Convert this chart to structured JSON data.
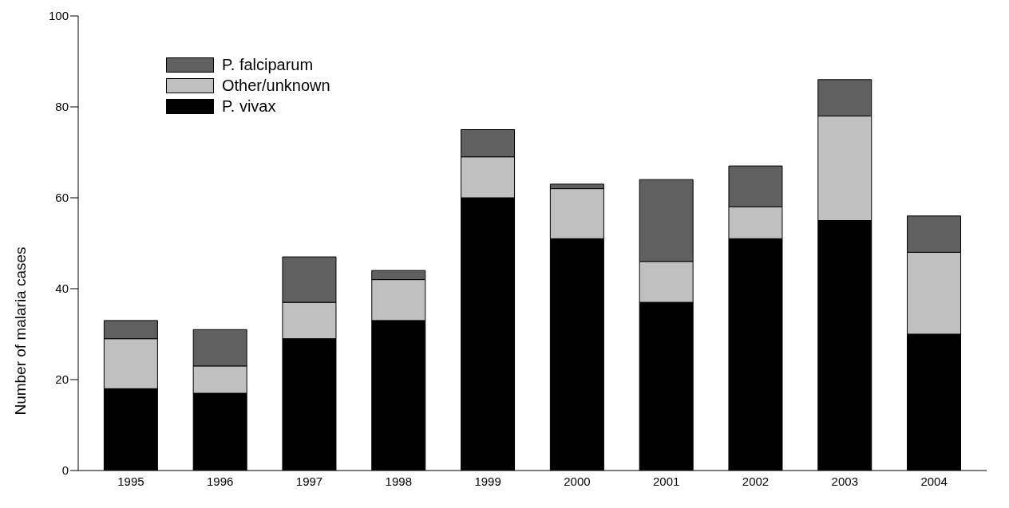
{
  "chart_data": {
    "type": "bar",
    "stacked": true,
    "ylabel": "Number of malaria cases",
    "categories": [
      "1995",
      "1996",
      "1997",
      "1998",
      "1999",
      "2000",
      "2001",
      "2002",
      "2003",
      "2004"
    ],
    "series": [
      {
        "name": "P. vivax",
        "color": "#000000",
        "values": [
          18,
          17,
          29,
          33,
          60,
          51,
          37,
          51,
          55,
          30
        ]
      },
      {
        "name": "Other/unknown",
        "color": "#c0c0c0",
        "values": [
          11,
          6,
          8,
          9,
          9,
          11,
          9,
          7,
          23,
          18
        ]
      },
      {
        "name": "P. falciparum",
        "color": "#606060",
        "values": [
          4,
          8,
          10,
          2,
          6,
          1,
          18,
          9,
          8,
          8
        ]
      }
    ],
    "ylim": [
      0,
      100
    ],
    "yticks": [
      0,
      20,
      40,
      60,
      80,
      100
    ],
    "legend": "top left"
  }
}
